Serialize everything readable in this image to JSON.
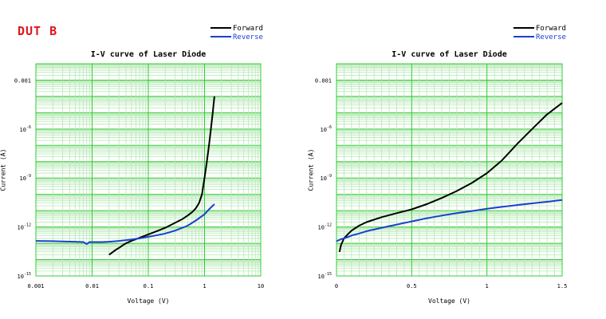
{
  "page": {
    "title": "DUT B"
  },
  "colors": {
    "grid_major": "#33cc33",
    "grid_minor": "#b5e8b5",
    "forward": "#000000",
    "reverse": "#1a3fd0",
    "title_red": "#e0161f"
  },
  "chart_data": [
    {
      "type": "line",
      "title": "I-V curve of Laser Diode",
      "xlabel": "Voltage (V)",
      "ylabel": "Current (A)",
      "xscale": "log",
      "yscale": "log",
      "xlim": [
        0.001,
        10
      ],
      "ylim": [
        1e-15,
        0.01
      ],
      "grid": true,
      "legend_position": "top-right",
      "x_ticks": [
        {
          "value": 0.001,
          "label": "0.001"
        },
        {
          "value": 0.01,
          "label": "0.01"
        },
        {
          "value": 0.1,
          "label": "0.1"
        },
        {
          "value": 1,
          "label": "1"
        },
        {
          "value": 10,
          "label": "10"
        }
      ],
      "y_ticks": [
        {
          "value": 1e-15,
          "base": "10",
          "exp": "-15"
        },
        {
          "value": 1e-12,
          "base": "10",
          "exp": "-12"
        },
        {
          "value": 1e-09,
          "base": "10",
          "exp": "-9"
        },
        {
          "value": 1e-06,
          "base": "10",
          "exp": "-6"
        },
        {
          "value": 0.001,
          "label": "0.001"
        }
      ],
      "series": [
        {
          "name": "Forward",
          "color": "#000000",
          "x": [
            0.02,
            0.022,
            0.025,
            0.028,
            0.032,
            0.036,
            0.04,
            0.05,
            0.06,
            0.08,
            0.1,
            0.15,
            0.2,
            0.3,
            0.4,
            0.5,
            0.6,
            0.7,
            0.8,
            0.9,
            1.0,
            1.1,
            1.2,
            1.3,
            1.4,
            1.5
          ],
          "y": [
            2e-14,
            2.5e-14,
            3.5e-14,
            4.5e-14,
            6e-14,
            8e-14,
            1e-13,
            1.4e-13,
            1.8e-13,
            2.6e-13,
            3.5e-13,
            6e-13,
            9e-13,
            1.8e-12,
            3e-12,
            5e-12,
            8e-12,
            1.4e-11,
            3e-11,
            1e-10,
            1e-09,
            1e-08,
            1e-07,
            1e-06,
            1e-05,
            0.0001
          ]
        },
        {
          "name": "Reverse",
          "color": "#1a3fd0",
          "x": [
            0.001,
            0.002,
            0.003,
            0.005,
            0.007,
            0.008,
            0.009,
            0.01,
            0.015,
            0.02,
            0.03,
            0.05,
            0.07,
            0.1,
            0.15,
            0.2,
            0.3,
            0.5,
            0.7,
            1.0,
            1.2,
            1.5
          ],
          "y": [
            1.4e-13,
            1.35e-13,
            1.3e-13,
            1.25e-13,
            1.2e-13,
            9e-14,
            1.2e-13,
            1.2e-13,
            1.2e-13,
            1.25e-13,
            1.4e-13,
            1.7e-13,
            2e-13,
            2.5e-13,
            3.2e-13,
            4e-13,
            6e-13,
            1.2e-12,
            2.5e-12,
            6e-12,
            1.2e-11,
            2.5e-11
          ]
        }
      ]
    },
    {
      "type": "line",
      "title": "I-V curve of Laser Diode",
      "xlabel": "Voltage (V)",
      "ylabel": "Current (A)",
      "xscale": "linear",
      "yscale": "log",
      "xlim": [
        0,
        1.5
      ],
      "ylim": [
        1e-15,
        0.01
      ],
      "grid": true,
      "legend_position": "top-right",
      "x_ticks": [
        {
          "value": 0,
          "label": "0"
        },
        {
          "value": 0.5,
          "label": "0.5"
        },
        {
          "value": 1,
          "label": "1"
        },
        {
          "value": 1.5,
          "label": "1.5"
        }
      ],
      "y_ticks": [
        {
          "value": 1e-15,
          "base": "10",
          "exp": "-15"
        },
        {
          "value": 1e-12,
          "base": "10",
          "exp": "-12"
        },
        {
          "value": 1e-09,
          "base": "10",
          "exp": "-9"
        },
        {
          "value": 1e-06,
          "base": "10",
          "exp": "-6"
        },
        {
          "value": 0.001,
          "label": "0.001"
        }
      ],
      "series": [
        {
          "name": "Forward",
          "color": "#000000",
          "x": [
            0.02,
            0.03,
            0.05,
            0.08,
            0.1,
            0.15,
            0.2,
            0.3,
            0.4,
            0.5,
            0.6,
            0.7,
            0.8,
            0.9,
            1.0,
            1.1,
            1.2,
            1.3,
            1.4,
            1.5
          ],
          "y": [
            3e-14,
            8e-14,
            2e-13,
            4e-13,
            6e-13,
            1.2e-12,
            2e-12,
            4e-12,
            7e-12,
            1.2e-11,
            2.5e-11,
            6e-11,
            1.6e-10,
            5e-10,
            2e-09,
            1.2e-08,
            1.2e-07,
            1e-06,
            8e-06,
            4e-05
          ]
        },
        {
          "name": "Reverse",
          "color": "#1a3fd0",
          "x": [
            0.0,
            0.01,
            0.02,
            0.03,
            0.05,
            0.08,
            0.1,
            0.15,
            0.2,
            0.3,
            0.4,
            0.5,
            0.6,
            0.7,
            0.8,
            0.9,
            1.0,
            1.1,
            1.2,
            1.3,
            1.4,
            1.5
          ],
          "y": [
            1.3e-13,
            1.5e-13,
            1.6e-13,
            1.8e-13,
            2e-13,
            2.5e-13,
            3e-13,
            4e-13,
            5.5e-13,
            9e-13,
            1.4e-12,
            2.2e-12,
            3.4e-12,
            5e-12,
            7e-12,
            9.5e-12,
            1.3e-11,
            1.7e-11,
            2.2e-11,
            2.8e-11,
            3.5e-11,
            4.5e-11
          ]
        }
      ]
    }
  ]
}
